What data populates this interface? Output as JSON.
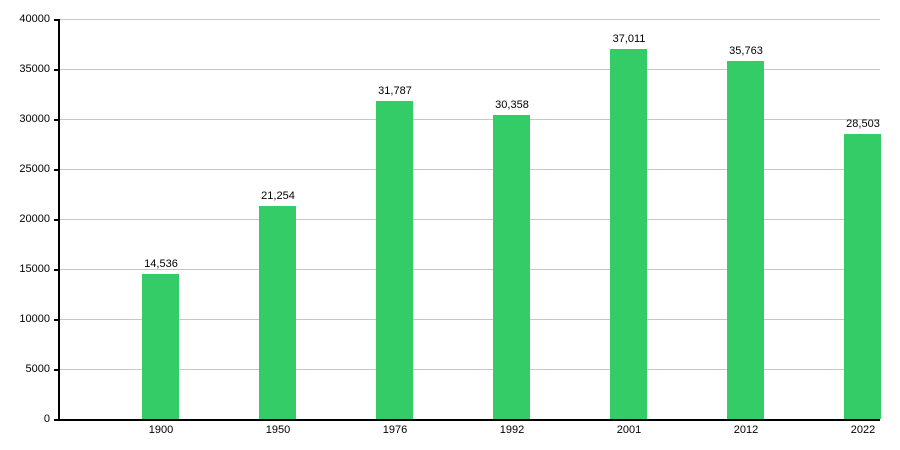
{
  "chart_data": {
    "type": "bar",
    "title": "",
    "xlabel": "",
    "ylabel": "",
    "categories": [
      "1900",
      "1950",
      "1976",
      "1992",
      "2001",
      "2012",
      "2022"
    ],
    "values": [
      14536,
      21254,
      31787,
      30358,
      37011,
      35763,
      28503
    ],
    "value_labels": [
      "14,536",
      "21,254",
      "31,787",
      "30,358",
      "37,011",
      "35,763",
      "28,503"
    ],
    "ylim": [
      0,
      40000
    ],
    "yticks": [
      0,
      5000,
      10000,
      15000,
      20000,
      25000,
      30000,
      35000,
      40000
    ],
    "ytick_labels": [
      "0",
      "5000",
      "10000",
      "15000",
      "20000",
      "25000",
      "30000",
      "35000",
      "40000"
    ],
    "grid": "horizontal",
    "legend": "none",
    "colors": {
      "bar": "#33cc66",
      "grid": "#c6c6c6",
      "axis": "#000000",
      "text": "#000000",
      "background": "#ffffff"
    }
  }
}
